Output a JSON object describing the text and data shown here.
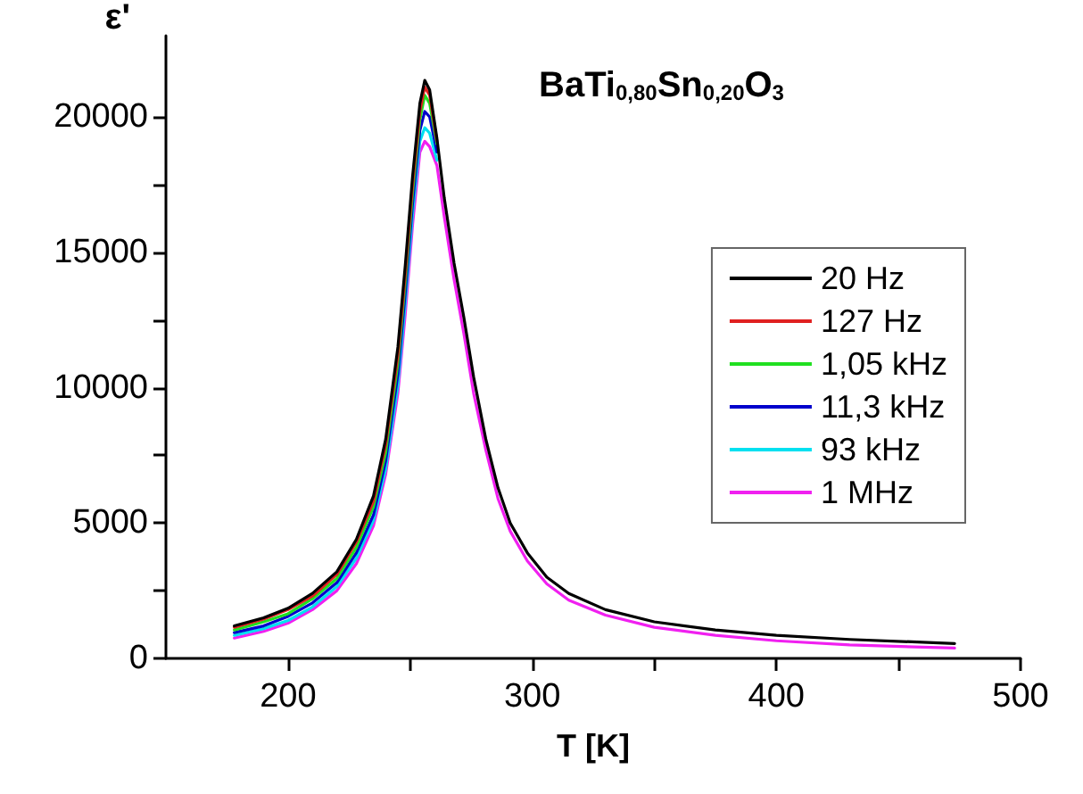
{
  "chart_data": {
    "type": "line",
    "xlabel": "T [K]",
    "ylabel": "ε'",
    "annotations": [
      "BaTi$_{0,80}$Sn$_{0,20}$O$_{3}$"
    ],
    "x": [
      178,
      190,
      200,
      210,
      220,
      228,
      235,
      240,
      245,
      248,
      251,
      254,
      256,
      258,
      261,
      264,
      268,
      272,
      276,
      281,
      286,
      291,
      298,
      306,
      315,
      330,
      350,
      375,
      400,
      430,
      473
    ],
    "series": [
      {
        "name": "20 Hz",
        "color": "#000000",
        "values": [
          1200,
          1500,
          1850,
          2400,
          3200,
          4400,
          6000,
          8100,
          11500,
          14500,
          17800,
          20500,
          21350,
          21000,
          19200,
          17000,
          14600,
          12600,
          10400,
          8100,
          6300,
          5000,
          3900,
          3000,
          2400,
          1800,
          1350,
          1050,
          850,
          700,
          550
        ]
      },
      {
        "name": "127 Hz",
        "color": "#e02020",
        "values": [
          1150,
          1450,
          1800,
          2300,
          3100,
          4300,
          5800,
          7900,
          11200,
          14200,
          17500,
          20200,
          21100,
          20800,
          19100,
          null,
          null,
          null,
          null,
          null,
          null,
          null,
          null,
          null,
          null,
          null,
          null,
          null,
          null,
          null,
          null
        ]
      },
      {
        "name": "1,05 kHz",
        "color": "#20e020",
        "values": [
          1050,
          1350,
          1650,
          2200,
          2950,
          4100,
          5600,
          7600,
          10900,
          13900,
          17200,
          19900,
          20800,
          20500,
          19000,
          null,
          null,
          null,
          null,
          null,
          null,
          null,
          null,
          null,
          null,
          null,
          null,
          null,
          null,
          null,
          null
        ]
      },
      {
        "name": "11,3 kHz",
        "color": "#0000cc",
        "values": [
          950,
          1200,
          1550,
          2050,
          2800,
          3900,
          5300,
          7300,
          10500,
          13500,
          16800,
          19500,
          20200,
          20000,
          18700,
          null,
          null,
          null,
          null,
          null,
          null,
          null,
          null,
          null,
          null,
          null,
          null,
          null,
          null,
          null,
          null
        ]
      },
      {
        "name": "93 kHz",
        "color": "#00e0f0",
        "values": [
          850,
          1100,
          1400,
          1900,
          2650,
          3700,
          5100,
          7000,
          10100,
          13100,
          16400,
          19100,
          19600,
          19400,
          18400,
          null,
          null,
          null,
          null,
          null,
          null,
          null,
          null,
          null,
          null,
          null,
          null,
          null,
          null,
          null,
          null
        ]
      },
      {
        "name": "1 MHz",
        "color": "#f020f0",
        "values": [
          750,
          1000,
          1300,
          1800,
          2500,
          3500,
          4900,
          6800,
          9800,
          12700,
          16000,
          18700,
          19100,
          18900,
          18200,
          16300,
          14000,
          12000,
          9800,
          7700,
          5900,
          4700,
          3600,
          2750,
          2150,
          1600,
          1150,
          850,
          650,
          500,
          380
        ]
      }
    ],
    "xlim": [
      150,
      500
    ],
    "xticks": [
      200,
      {
        "value": 250,
        "label": null
      },
      300,
      {
        "value": 350,
        "label": null
      },
      400,
      {
        "value": 450,
        "label": null
      },
      500
    ],
    "ylim": [
      0,
      23000
    ],
    "yticks": [
      0,
      {
        "value": 2500,
        "label": null
      },
      5000,
      {
        "value": 7500,
        "label": null
      },
      10000,
      {
        "value": 12500,
        "label": null
      },
      15000,
      {
        "value": 17500,
        "label": null
      },
      20000
    ],
    "legend": "right",
    "grid": false,
    "marker": "none",
    "line_style": "solid"
  }
}
